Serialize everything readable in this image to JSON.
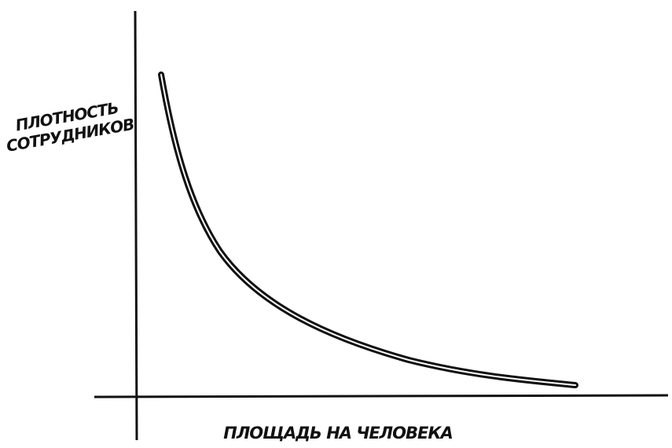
{
  "y_axis_label": [
    "ПЛОТНОСТЬ",
    "СОТРУДНИКОВ"
  ],
  "x_axis_label": "ПЛОЩАДЬ НА ЧЕЛОВЕКА"
}
